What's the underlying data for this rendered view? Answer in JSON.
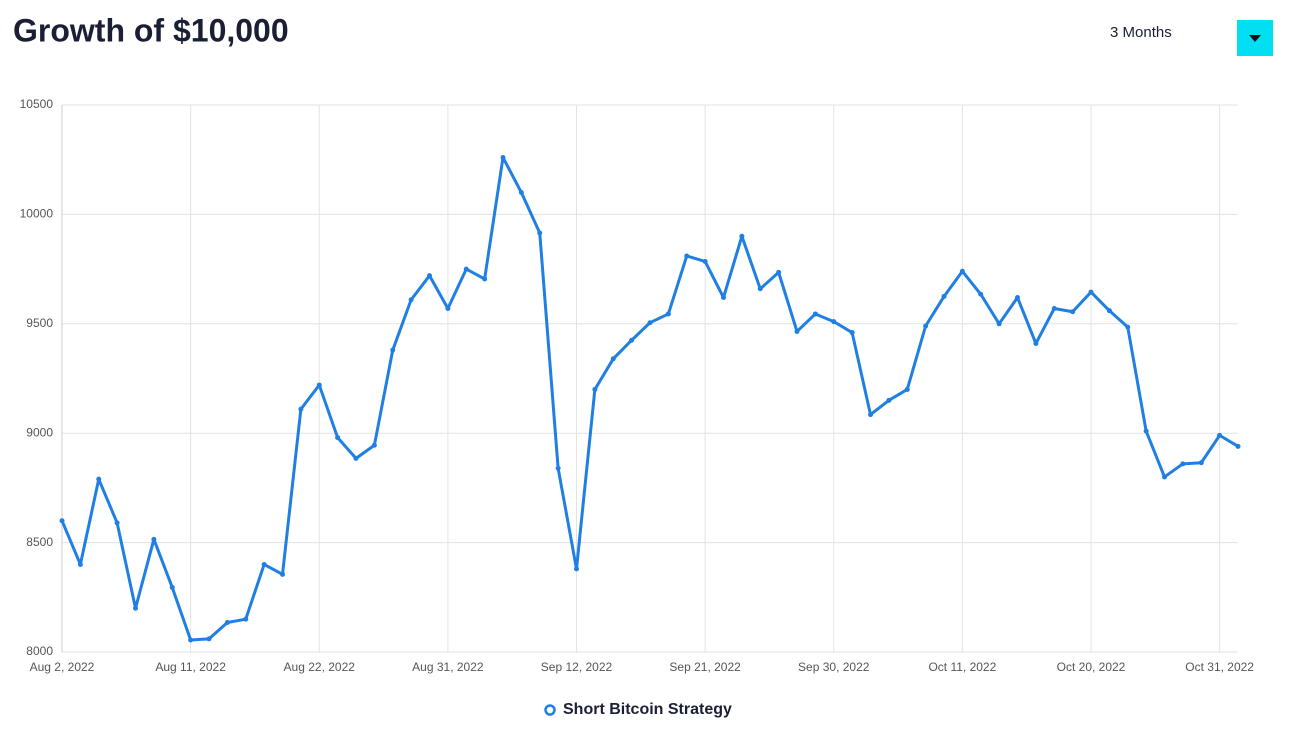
{
  "controls": {
    "period": "3 Months"
  },
  "chart_data": {
    "type": "line",
    "title": "Growth of $10,000",
    "categories": [
      "Aug 2, 2022",
      null,
      null,
      null,
      null,
      null,
      null,
      "Aug 11, 2022",
      null,
      null,
      null,
      null,
      null,
      null,
      "Aug 22, 2022",
      null,
      null,
      null,
      null,
      null,
      null,
      "Aug 31, 2022",
      null,
      null,
      null,
      null,
      null,
      null,
      "Sep 12, 2022",
      null,
      null,
      null,
      null,
      null,
      null,
      "Sep 21, 2022",
      null,
      null,
      null,
      null,
      null,
      null,
      "Sep 30, 2022",
      null,
      null,
      null,
      null,
      null,
      null,
      "Oct 11, 2022",
      null,
      null,
      null,
      null,
      null,
      null,
      "Oct 20, 2022",
      null,
      null,
      null,
      null,
      null,
      null,
      "Oct 31, 2022",
      null
    ],
    "series": [
      {
        "name": "Short Bitcoin Strategy",
        "color": "#1f7fe3",
        "values": [
          8600,
          8400,
          8790,
          8590,
          8200,
          8515,
          8295,
          8055,
          8060,
          8135,
          8150,
          8400,
          8355,
          9110,
          9220,
          8980,
          8885,
          8945,
          9380,
          9610,
          9720,
          9570,
          9750,
          9705,
          10260,
          10100,
          9915,
          8840,
          8380,
          9200,
          9340,
          9425,
          9505,
          9545,
          9810,
          9785,
          9620,
          9900,
          9660,
          9735,
          9465,
          9545,
          9510,
          9460,
          9085,
          9150,
          9200,
          9490,
          9625,
          9740,
          9635,
          9500,
          9620,
          9410,
          9570,
          9555,
          9645,
          9560,
          9485,
          9010,
          8800,
          8860,
          8865,
          8990,
          8940
        ]
      }
    ],
    "ylim": [
      8000,
      10500
    ],
    "yticks": [
      8000,
      8500,
      9000,
      9500,
      10000,
      10500
    ],
    "grid": true
  }
}
